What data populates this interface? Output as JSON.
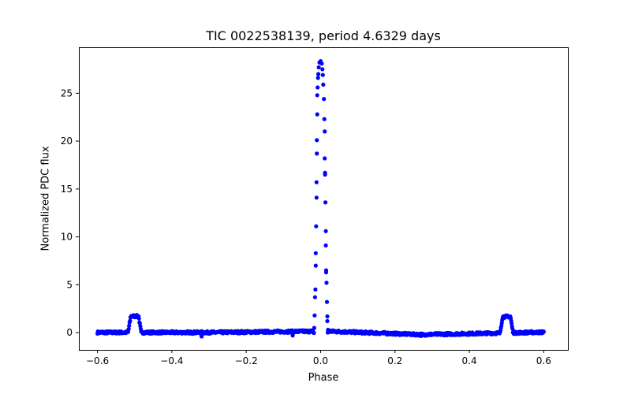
{
  "chart_data": {
    "type": "scatter",
    "title": "TIC 0022538139, period 4.6329 days",
    "xlabel": "Phase",
    "ylabel": "Normalized PDC flux",
    "xlim": [
      -0.65,
      0.665
    ],
    "ylim": [
      -1.8,
      29.8
    ],
    "xticks": [
      -0.6,
      -0.4,
      -0.2,
      0.0,
      0.2,
      0.4,
      0.6
    ],
    "xtick_labels": [
      "−0.6",
      "−0.4",
      "−0.2",
      "0.0",
      "0.2",
      "0.4",
      "0.6"
    ],
    "yticks": [
      0,
      5,
      10,
      15,
      20,
      25
    ],
    "ytick_labels": [
      "0",
      "5",
      "10",
      "15",
      "20",
      "25"
    ],
    "grid": false,
    "legend": null,
    "marker_color": "#0000ff",
    "series": [
      {
        "name": "PDC flux",
        "description": "Flat baseline near 0 across phase -0.6 to 0.6 with slight drift (~+0.15 near -0.05, ~-0.2 near 0.27); narrow primary flare peak at phase 0.0 reaching ~28.3; secondary bumps ~1.7 at phases -0.5 and +0.5",
        "peak_points": [
          {
            "x": -0.017,
            "y": 0.5
          },
          {
            "x": -0.016,
            "y": 1.8
          },
          {
            "x": -0.015,
            "y": 3.7
          },
          {
            "x": -0.014,
            "y": 4.5
          },
          {
            "x": -0.013,
            "y": 7.0
          },
          {
            "x": -0.013,
            "y": 8.3
          },
          {
            "x": -0.012,
            "y": 11.1
          },
          {
            "x": -0.011,
            "y": 14.1
          },
          {
            "x": -0.011,
            "y": 15.7
          },
          {
            "x": -0.01,
            "y": 18.7
          },
          {
            "x": -0.01,
            "y": 20.1
          },
          {
            "x": -0.009,
            "y": 22.8
          },
          {
            "x": -0.009,
            "y": 24.8
          },
          {
            "x": -0.008,
            "y": 25.6
          },
          {
            "x": -0.007,
            "y": 26.6
          },
          {
            "x": -0.006,
            "y": 27.0
          },
          {
            "x": -0.005,
            "y": 27.7
          },
          {
            "x": -0.003,
            "y": 28.2
          },
          {
            "x": 0.0,
            "y": 28.35
          },
          {
            "x": 0.003,
            "y": 28.1
          },
          {
            "x": 0.005,
            "y": 27.5
          },
          {
            "x": 0.006,
            "y": 26.9
          },
          {
            "x": 0.007,
            "y": 25.9
          },
          {
            "x": 0.009,
            "y": 24.4
          },
          {
            "x": 0.01,
            "y": 22.3
          },
          {
            "x": 0.011,
            "y": 21.0
          },
          {
            "x": 0.011,
            "y": 18.2
          },
          {
            "x": 0.012,
            "y": 16.7
          },
          {
            "x": 0.012,
            "y": 16.5
          },
          {
            "x": 0.013,
            "y": 13.6
          },
          {
            "x": 0.014,
            "y": 10.6
          },
          {
            "x": 0.014,
            "y": 9.1
          },
          {
            "x": 0.015,
            "y": 6.5
          },
          {
            "x": 0.015,
            "y": 6.3
          },
          {
            "x": 0.016,
            "y": 5.2
          },
          {
            "x": 0.017,
            "y": 3.2
          },
          {
            "x": 0.018,
            "y": 1.7
          },
          {
            "x": 0.018,
            "y": 1.2
          },
          {
            "x": 0.02,
            "y": 0.3
          }
        ],
        "bumps": [
          {
            "center": -0.5,
            "height": 1.7,
            "width": 0.035
          },
          {
            "center": 0.5,
            "height": 1.7,
            "width": 0.035
          }
        ],
        "outliers": [
          {
            "x": -0.32,
            "y": -0.4
          },
          {
            "x": -0.075,
            "y": -0.3
          },
          {
            "x": 0.27,
            "y": -0.35
          }
        ]
      }
    ]
  }
}
